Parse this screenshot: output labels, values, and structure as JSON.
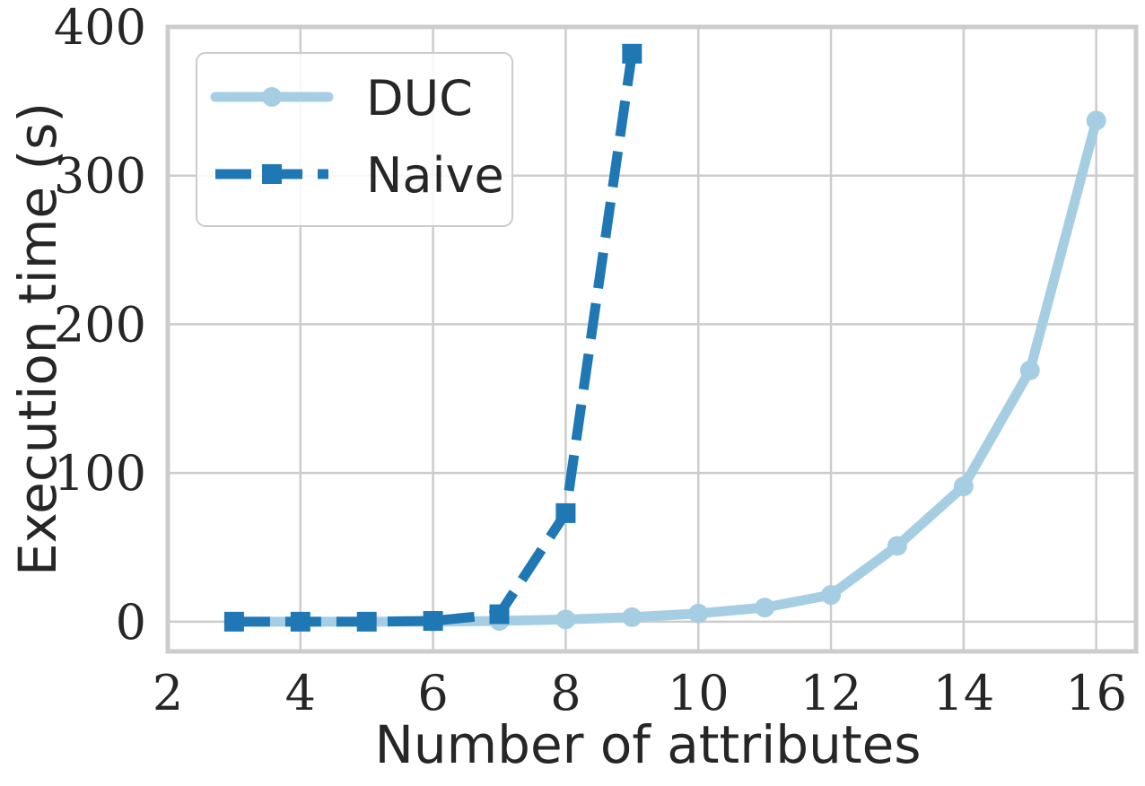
{
  "chart_data": {
    "type": "line",
    "xlabel": "Number of attributes",
    "ylabel": "Execution time (s)",
    "xlim": [
      2,
      16.6
    ],
    "ylim": [
      -20,
      400
    ],
    "xticks": [
      2,
      4,
      6,
      8,
      10,
      12,
      14,
      16
    ],
    "yticks": [
      0,
      100,
      200,
      300,
      400
    ],
    "grid": true,
    "legend_position": "top-left",
    "series": [
      {
        "name": "DUC",
        "color": "#a6cee3",
        "line_style": "solid",
        "marker": "circle",
        "x": [
          3,
          4,
          5,
          6,
          7,
          8,
          9,
          10,
          11,
          12,
          13,
          14,
          15,
          16
        ],
        "y": [
          0,
          0,
          0,
          0,
          0.5,
          1.5,
          3,
          5.5,
          9.5,
          18,
          51,
          91,
          169,
          337
        ]
      },
      {
        "name": "Naive",
        "color": "#1f78b4",
        "line_style": "dashed",
        "marker": "square",
        "x": [
          3,
          4,
          5,
          6,
          7,
          8,
          9
        ],
        "y": [
          0,
          0,
          0,
          0.5,
          5,
          73,
          382
        ]
      }
    ]
  }
}
